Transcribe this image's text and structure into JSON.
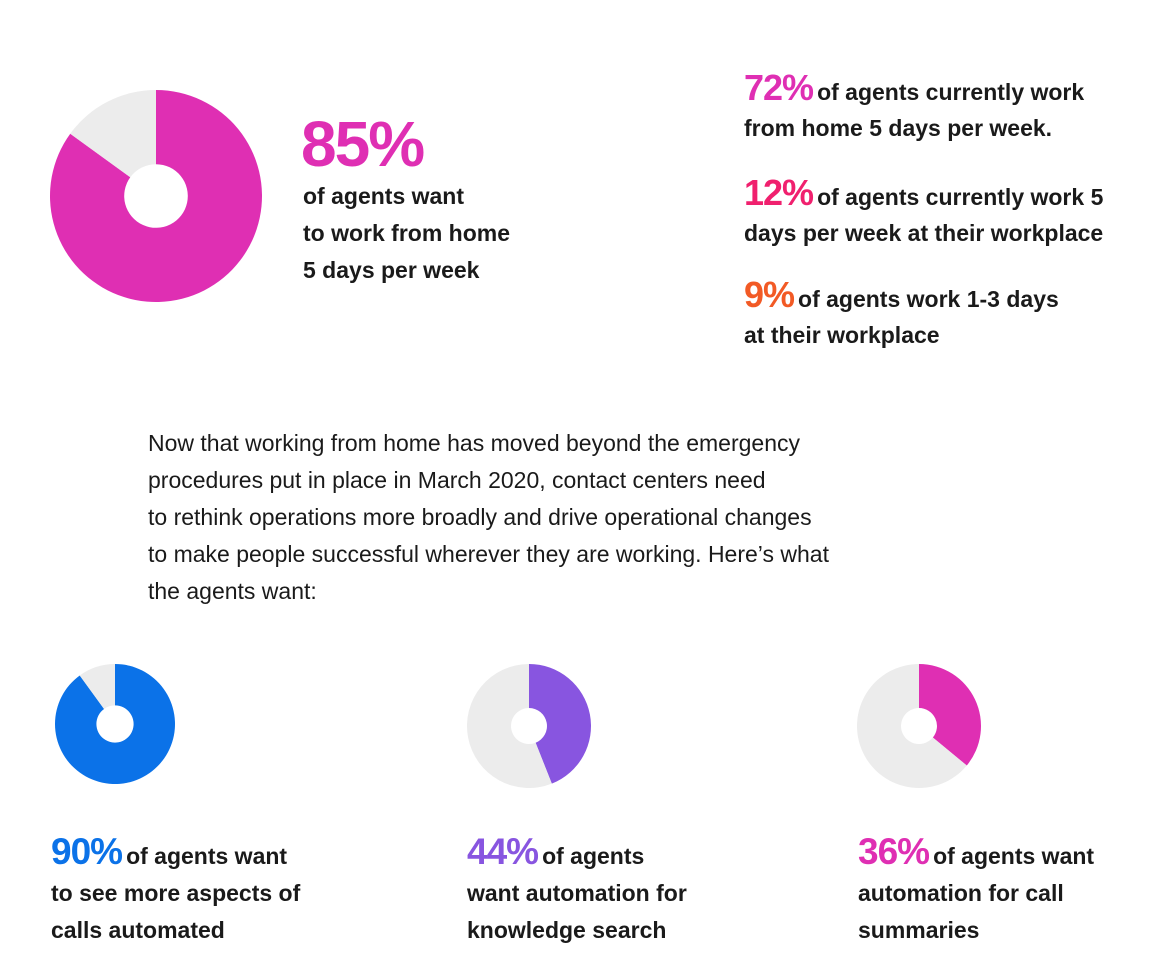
{
  "chart_data": [
    {
      "type": "pie",
      "donut": true,
      "slices": [
        {
          "value": 85,
          "color": "#df2fb3"
        },
        {
          "value": 15,
          "color": "#ececec"
        }
      ]
    },
    {
      "type": "pie",
      "donut": true,
      "slices": [
        {
          "value": 90,
          "color": "#0b72e8"
        },
        {
          "value": 10,
          "color": "#ececec"
        }
      ]
    },
    {
      "type": "pie",
      "donut": true,
      "slices": [
        {
          "value": 44,
          "color": "#8855e0"
        },
        {
          "value": 56,
          "color": "#ececec"
        }
      ]
    },
    {
      "type": "pie",
      "donut": true,
      "slices": [
        {
          "value": 36,
          "color": "#df2fb3"
        },
        {
          "value": 64,
          "color": "#ececec"
        }
      ]
    }
  ],
  "hero": {
    "percent": "85%",
    "line1": "of agents want",
    "line2": "to work from home",
    "line3": "5 days per week",
    "color": "#df2fb3"
  },
  "stats": [
    {
      "percent": "72%",
      "line1": "of agents currently work",
      "line2": "from home 5 days per week.",
      "color": "#df2fb3"
    },
    {
      "percent": "12%",
      "line1": "of agents currently work 5",
      "line2": "days per week at their workplace",
      "color": "#f0206e"
    },
    {
      "percent": "9%",
      "line1": "of agents work 1-3 days",
      "line2": "at their workplace",
      "color": "#f25a25"
    }
  ],
  "paragraph": [
    "Now that working from home has moved beyond the emergency",
    "procedures put in place in March 2020, contact centers need",
    "to rethink operations more broadly and drive operational changes",
    "to make people successful wherever they are working. Here’s what",
    "the agents want:"
  ],
  "bottom_stats": [
    {
      "percent": "90%",
      "line1": "of agents want",
      "line2": "to see more aspects of",
      "line3": "calls automated",
      "color": "#0b72e8"
    },
    {
      "percent": "44%",
      "line1": "of agents",
      "line2": "want automation for",
      "line3": "knowledge search",
      "color": "#8855e0"
    },
    {
      "percent": "36%",
      "line1": "of agents want",
      "line2": "automation for call",
      "line3": "summaries",
      "color": "#df2fb3"
    }
  ]
}
